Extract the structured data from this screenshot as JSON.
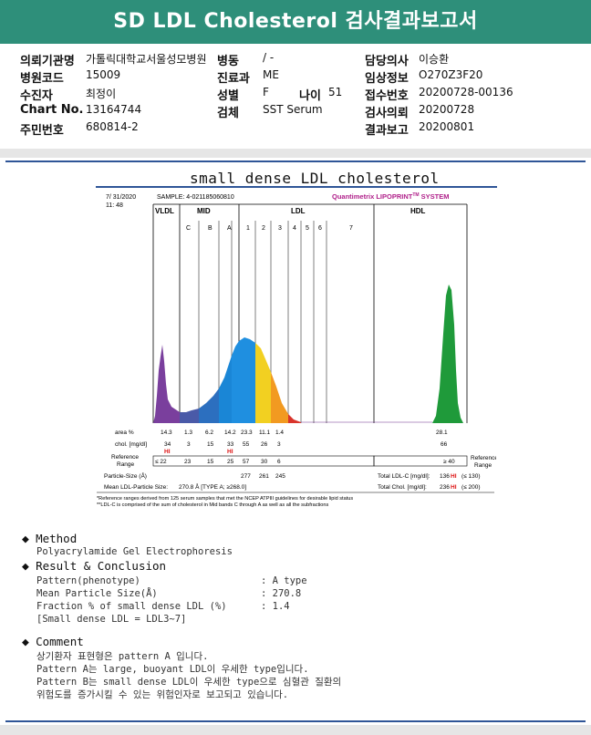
{
  "header": {
    "title": "SD LDL Cholesterol 검사결과보고서"
  },
  "patient": {
    "institution_label": "의뢰기관명",
    "institution_value": "가톨릭대학교서울성모병원",
    "ward_label": "병동",
    "ward_value": "/ -",
    "doctor_label": "담당의사",
    "doctor_value": "이승환",
    "hospital_code_label": "병원코드",
    "hospital_code_value": "15009",
    "dept_label": "진료과",
    "dept_value": "ME",
    "clinical_label": "임상정보",
    "clinical_value": "O270Z3F20",
    "examinee_label": "수진자",
    "examinee_value": "최정이",
    "sex_label": "성별",
    "sex_value": "F",
    "age_label": "나이",
    "age_value": "51",
    "receipt_label": "접수번호",
    "receipt_value": "20200728-00136",
    "chart_label": "Chart No.",
    "chart_value": "13164744",
    "specimen_label": "검체",
    "specimen_value": "SST Serum",
    "request_label": "검사의뢰",
    "request_value": "20200728",
    "id_label": "주민번호",
    "id_value": "680814-2",
    "report_label": "결과보고",
    "report_value": "20200801"
  },
  "report": {
    "title": "small dense LDL cholesterol"
  },
  "lipoprint": {
    "date": "7/ 31/2020",
    "time": "11: 48",
    "sample": "SAMPLE:   4-021185060810",
    "brand": "Quantimetrix LIPOPRINT",
    "brand_tm": "TM",
    "brand_suffix": " SYSTEM",
    "groups": [
      "VLDL",
      "MID",
      "LDL",
      "HDL"
    ],
    "bands": [
      "C",
      "B",
      "A",
      "1",
      "2",
      "3",
      "4",
      "5",
      "6",
      "7"
    ],
    "row_labels": {
      "area": "area %",
      "chol": "chol. [mg/dl]",
      "ref": "Reference",
      "ref2": "Range",
      "psize": "Particle-Size (Å)",
      "mean": "Mean LDL-Particle Size:"
    },
    "area": [
      "14.3",
      "1.3",
      "6.2",
      "14.2",
      "23.3",
      "11.1",
      "1.4",
      "28.1"
    ],
    "chol": [
      "34",
      "3",
      "15",
      "33",
      "55",
      "26",
      "3",
      "66"
    ],
    "hi": "HI",
    "ref_values": [
      "≤ 22",
      "23",
      "15",
      "25",
      "57",
      "30",
      "6",
      "≥ 40"
    ],
    "particle_sizes": [
      "277",
      "261",
      "245"
    ],
    "mean_value": "270.8 Å   [TYPE A; ≥268.0]",
    "total_ldl_label": "Total LDL-C [mg/dl]:",
    "total_ldl_value": "136",
    "total_ldl_range": "(≤ 130)",
    "total_chol_label": "Total Chol. [mg/dl]:",
    "total_chol_value": "236",
    "total_chol_range": "(≤ 200)",
    "footnote1": "*Reference ranges derived from 125 serum samples that met the NCEP ATPIII guidelines for desirable lipid status",
    "footnote2": "**LDL-C is comprised of the sum of cholesterol in Mid bands C through A as well as all the subfractions"
  },
  "chart_data": {
    "type": "area",
    "title": "",
    "xlabel": "",
    "ylabel": "",
    "categories": [
      "VLDL",
      "C",
      "B",
      "A",
      "1",
      "2",
      "3",
      "4",
      "5",
      "6",
      "7",
      "HDL"
    ],
    "series": [
      {
        "values": [
          14.3,
          1.3,
          6.2,
          14.2,
          23.3,
          11.1,
          1.4,
          0,
          0,
          0,
          0,
          28.1
        ]
      }
    ]
  },
  "method": {
    "heading": "Method",
    "text": "Polyacrylamide Gel Electrophoresis"
  },
  "result": {
    "heading": "Result & Conclusion",
    "rows": [
      {
        "label": "Pattern(phenotype)",
        "value": ": A type"
      },
      {
        "label": "Mean Particle Size(Å)",
        "value": ": 270.8"
      },
      {
        "label": "Fraction % of small dense LDL (%)",
        "value": ": 1.4"
      }
    ],
    "note": "[Small dense LDL = LDL3~7]"
  },
  "comment": {
    "heading": "Comment",
    "lines": [
      "상기환자 표현형은 pattern A 입니다.",
      "Pattern A는 large, buoyant LDL이 우세한 type입니다.",
      "Pattern B는 small dense LDL이 우세한 type으로 심혈관 질환의",
      "위험도를 증가시킬 수 있는 위험인자로 보고되고 있습니다."
    ]
  },
  "colors": {
    "title_bg": "#2e8f7a",
    "rule": "#2f5597",
    "vldl": "#7a3f9d",
    "hdl": "#1f9a3a"
  }
}
